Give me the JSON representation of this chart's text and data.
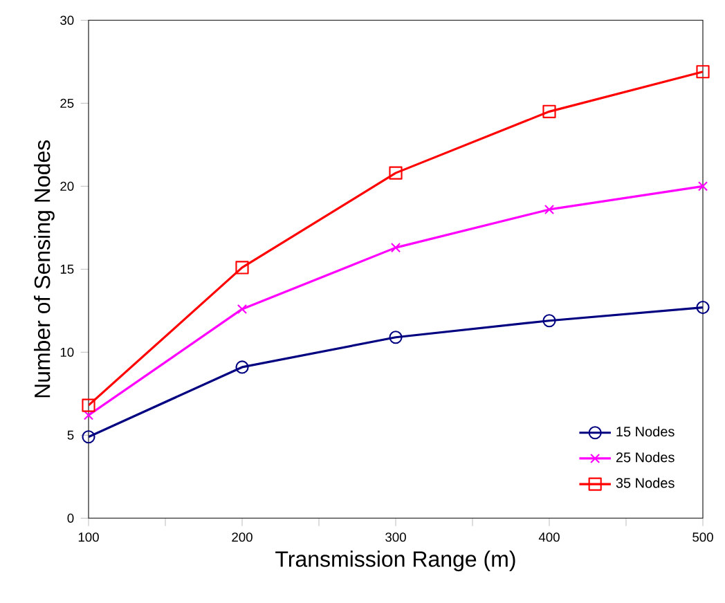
{
  "chart_data": {
    "type": "line",
    "xlabel": "Transmission Range (m)",
    "ylabel": "Number of Sensing Nodes",
    "x": [
      100,
      200,
      300,
      400,
      500
    ],
    "series": [
      {
        "name": "15 Nodes",
        "color": "#000080",
        "marker": "circle",
        "values": [
          4.9,
          9.1,
          10.9,
          11.9,
          12.7
        ]
      },
      {
        "name": "25 Nodes",
        "color": "#ff00ff",
        "marker": "cross",
        "values": [
          6.2,
          12.6,
          16.3,
          18.6,
          20.0
        ]
      },
      {
        "name": "35 Nodes",
        "color": "#ff0000",
        "marker": "square",
        "values": [
          6.8,
          15.1,
          20.8,
          24.5,
          26.9
        ]
      }
    ],
    "xlim": [
      100,
      500
    ],
    "ylim": [
      0,
      30
    ],
    "xticks": [
      100,
      {
        "value": 150,
        "label": null
      },
      200,
      {
        "value": 250,
        "label": null
      },
      300,
      {
        "value": 350,
        "label": null
      },
      400,
      {
        "value": 450,
        "label": null
      },
      500
    ],
    "yticks": [
      0,
      5,
      10,
      15,
      20,
      25,
      30
    ],
    "grid": false,
    "legend": "bottom right",
    "line_style": "solid"
  }
}
